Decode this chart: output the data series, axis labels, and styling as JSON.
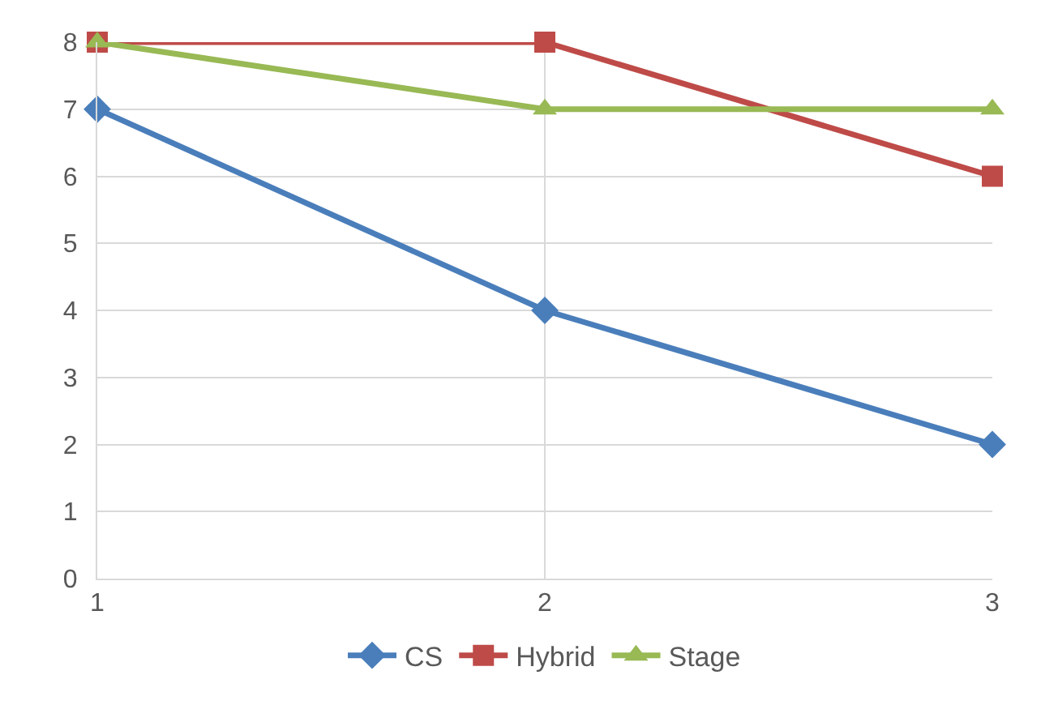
{
  "chart_data": {
    "type": "line",
    "x": [
      1,
      2,
      3
    ],
    "series": [
      {
        "name": "CS",
        "color": "#4a7ebb",
        "marker": "diamond",
        "values": [
          7,
          4,
          2
        ]
      },
      {
        "name": "Hybrid",
        "color": "#be4b48",
        "marker": "square",
        "values": [
          8,
          8,
          6
        ]
      },
      {
        "name": "Stage",
        "color": "#98b954",
        "marker": "triangle",
        "values": [
          8,
          7,
          7
        ]
      }
    ],
    "xlim": [
      1,
      3
    ],
    "xticks": [
      1,
      2,
      3
    ],
    "ylim": [
      0,
      8
    ],
    "yticks": [
      0,
      1,
      2,
      3,
      4,
      5,
      6,
      7,
      8
    ],
    "grid": true,
    "legend": "bottom",
    "line_style": "solid"
  }
}
